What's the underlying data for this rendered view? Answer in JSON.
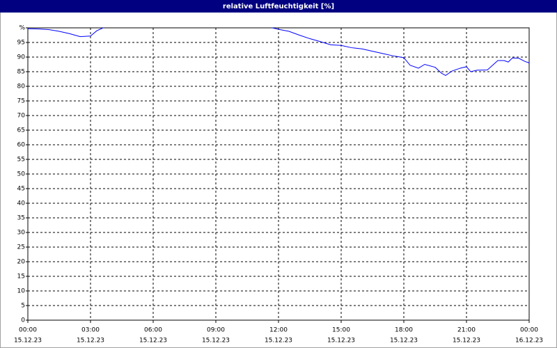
{
  "chart_data": {
    "type": "line",
    "title": "relative Luftfeuchtigkeit [%]",
    "x": [
      0,
      0.5,
      1,
      1.5,
      2,
      2.5,
      3,
      3.3,
      3.6,
      3.7,
      11.7,
      12,
      12.5,
      13,
      13.5,
      14,
      14.5,
      15,
      15.5,
      16,
      16.5,
      17,
      17.5,
      18,
      18.3,
      18.7,
      19,
      19.5,
      19.8,
      20,
      20.3,
      20.7,
      21,
      21.2,
      21.5,
      22,
      22.5,
      22.8,
      23,
      23.2,
      23.5,
      23.8,
      24
    ],
    "series": [
      {
        "color": "#0000ff",
        "values": [
          99.7,
          99.6,
          99.4,
          98.8,
          98,
          97,
          97.2,
          99,
          100,
          null,
          100,
          99.5,
          98.8,
          97.5,
          96.3,
          95.3,
          94.2,
          94,
          93.2,
          92.8,
          92,
          91.2,
          90.4,
          89.8,
          87.2,
          86.2,
          87.5,
          86.5,
          84.5,
          83.7,
          85.2,
          86.2,
          86.7,
          85,
          85.5,
          85.6,
          88.8,
          88.8,
          88.3,
          89.7,
          89.6,
          88.5,
          88
        ]
      }
    ],
    "xlim": [
      0,
      24
    ],
    "xticks": [
      {
        "value": 0,
        "label": "00:00"
      },
      {
        "value": 3,
        "label": "03:00"
      },
      {
        "value": 6,
        "label": "06:00"
      },
      {
        "value": 9,
        "label": "09:00"
      },
      {
        "value": 12,
        "label": "12:00"
      },
      {
        "value": 15,
        "label": "15:00"
      },
      {
        "value": 18,
        "label": "18:00"
      },
      {
        "value": 21,
        "label": "21:00"
      },
      {
        "value": 24,
        "label": "00:00"
      }
    ],
    "xtick_dates": [
      "15.12.23",
      "15.12.23",
      "15.12.23",
      "15.12.23",
      "15.12.23",
      "15.12.23",
      "15.12.23",
      "15.12.23",
      "16.12.23"
    ],
    "ylim": [
      0,
      100
    ],
    "yticks": [
      0,
      5,
      10,
      15,
      20,
      25,
      30,
      35,
      40,
      45,
      50,
      55,
      60,
      65,
      70,
      75,
      80,
      85,
      90,
      95,
      {
        "value": 100,
        "label": "%"
      }
    ],
    "grid": true
  }
}
